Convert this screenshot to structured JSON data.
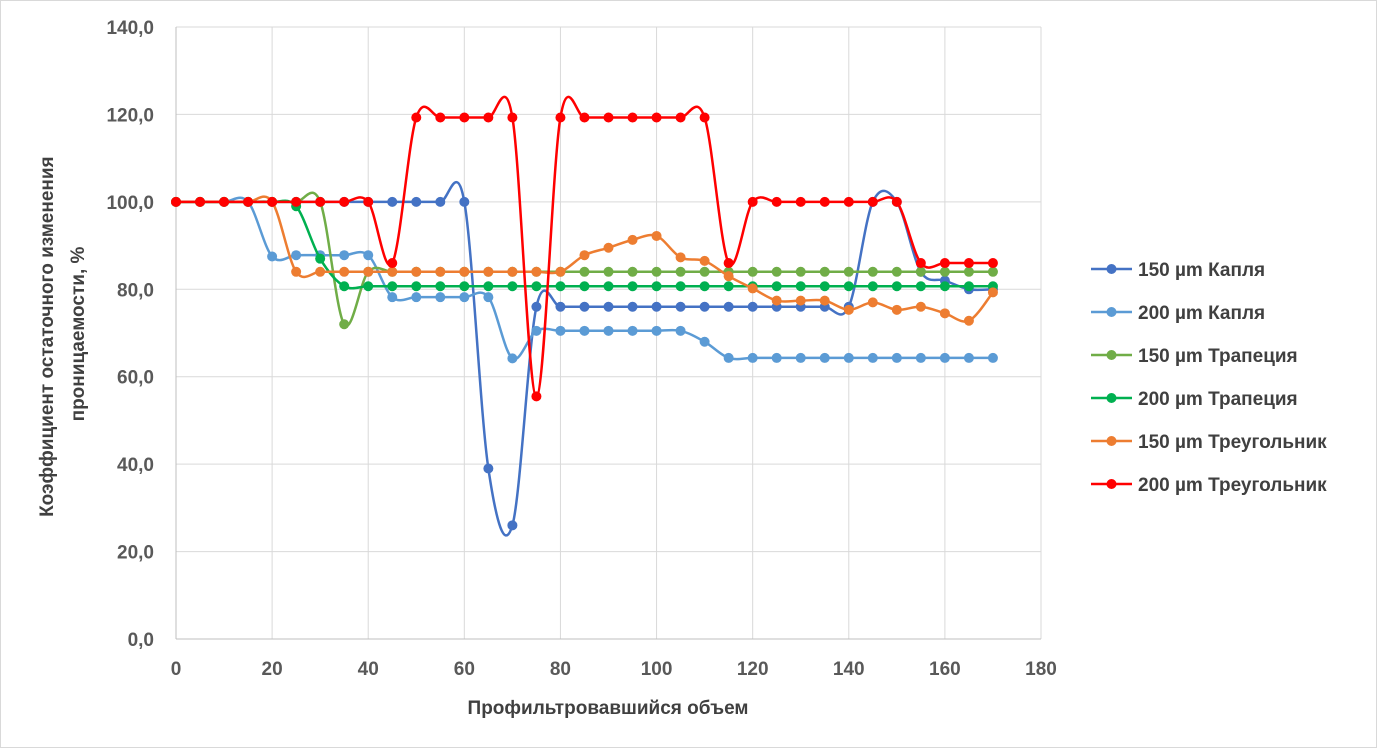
{
  "chart_data": {
    "type": "line",
    "title": "",
    "xlabel": "Профильтровавшийся объем",
    "ylabel_lines": [
      "Коэффициент остаточного изменения",
      "проницаемости, %"
    ],
    "xlim": [
      0,
      180
    ],
    "ylim": [
      0,
      140
    ],
    "x_ticks": [
      "0",
      "20",
      "40",
      "60",
      "80",
      "100",
      "120",
      "140",
      "160",
      "180"
    ],
    "y_ticks": [
      "0,0",
      "20,0",
      "40,0",
      "60,0",
      "80,0",
      "100,0",
      "120,0",
      "140,0"
    ],
    "grid": true,
    "smooth": true,
    "legend_position": "right",
    "x": [
      0,
      5,
      10,
      15,
      20,
      25,
      30,
      35,
      40,
      45,
      50,
      55,
      60,
      65,
      70,
      75,
      80,
      85,
      90,
      95,
      100,
      105,
      110,
      115,
      120,
      125,
      130,
      135,
      140,
      145,
      150,
      155,
      160,
      165,
      170
    ],
    "series": [
      {
        "name": "150 µm Капля",
        "color": "#4472c4",
        "values": [
          100,
          100,
          100,
          100,
          100,
          100,
          100,
          100,
          100,
          100,
          100,
          100,
          100,
          39,
          26,
          76,
          76,
          76,
          76,
          76,
          76,
          76,
          76,
          76,
          76,
          76,
          76,
          76,
          76,
          100,
          100,
          84,
          82,
          80,
          80
        ]
      },
      {
        "name": "200 µm Капля",
        "color": "#5b9bd5",
        "values": [
          100,
          100,
          100,
          100,
          87.5,
          87.8,
          87.8,
          87.8,
          87.8,
          78.2,
          78.2,
          78.2,
          78.2,
          78.2,
          64.2,
          70.5,
          70.5,
          70.5,
          70.5,
          70.5,
          70.5,
          70.5,
          68,
          64.3,
          64.3,
          64.3,
          64.3,
          64.3,
          64.3,
          64.3,
          64.3,
          64.3,
          64.3,
          64.3,
          64.3
        ]
      },
      {
        "name": "150 µm Трапеция",
        "color": "#70ad47",
        "values": [
          100,
          100,
          100,
          100,
          100,
          100,
          100,
          72,
          84,
          84,
          84,
          84,
          84,
          84,
          84,
          84,
          84,
          84,
          84,
          84,
          84,
          84,
          84,
          84,
          84,
          84,
          84,
          84,
          84,
          84,
          84,
          84,
          84,
          84,
          84
        ]
      },
      {
        "name": "200 µm Трапеция",
        "color": "#00b050",
        "values": [
          100,
          100,
          100,
          100,
          100,
          99,
          87,
          80.7,
          80.7,
          80.7,
          80.7,
          80.7,
          80.7,
          80.7,
          80.7,
          80.7,
          80.7,
          80.7,
          80.7,
          80.7,
          80.7,
          80.7,
          80.7,
          80.7,
          80.7,
          80.7,
          80.7,
          80.7,
          80.7,
          80.7,
          80.7,
          80.7,
          80.7,
          80.7,
          80.7
        ]
      },
      {
        "name": "150 µm Треугольник",
        "color": "#ed7d31",
        "values": [
          100,
          100,
          100,
          100,
          100,
          84,
          84,
          84,
          84,
          84,
          84,
          84,
          84,
          84,
          84,
          84,
          84,
          87.8,
          89.5,
          91.3,
          92.2,
          87.3,
          86.5,
          83,
          80.2,
          77.4,
          77.4,
          77.4,
          75.3,
          77,
          75.3,
          76,
          74.5,
          72.8,
          79.3
        ]
      },
      {
        "name": "200 µm Треугольник",
        "color": "#ff0000",
        "values": [
          100,
          100,
          100,
          100,
          100,
          100,
          100,
          100,
          100,
          86,
          119.3,
          119.3,
          119.3,
          119.3,
          119.3,
          55.5,
          119.3,
          119.3,
          119.3,
          119.3,
          119.3,
          119.3,
          119.3,
          86,
          100,
          100,
          100,
          100,
          100,
          100,
          100,
          86,
          86,
          86,
          86
        ]
      }
    ]
  }
}
